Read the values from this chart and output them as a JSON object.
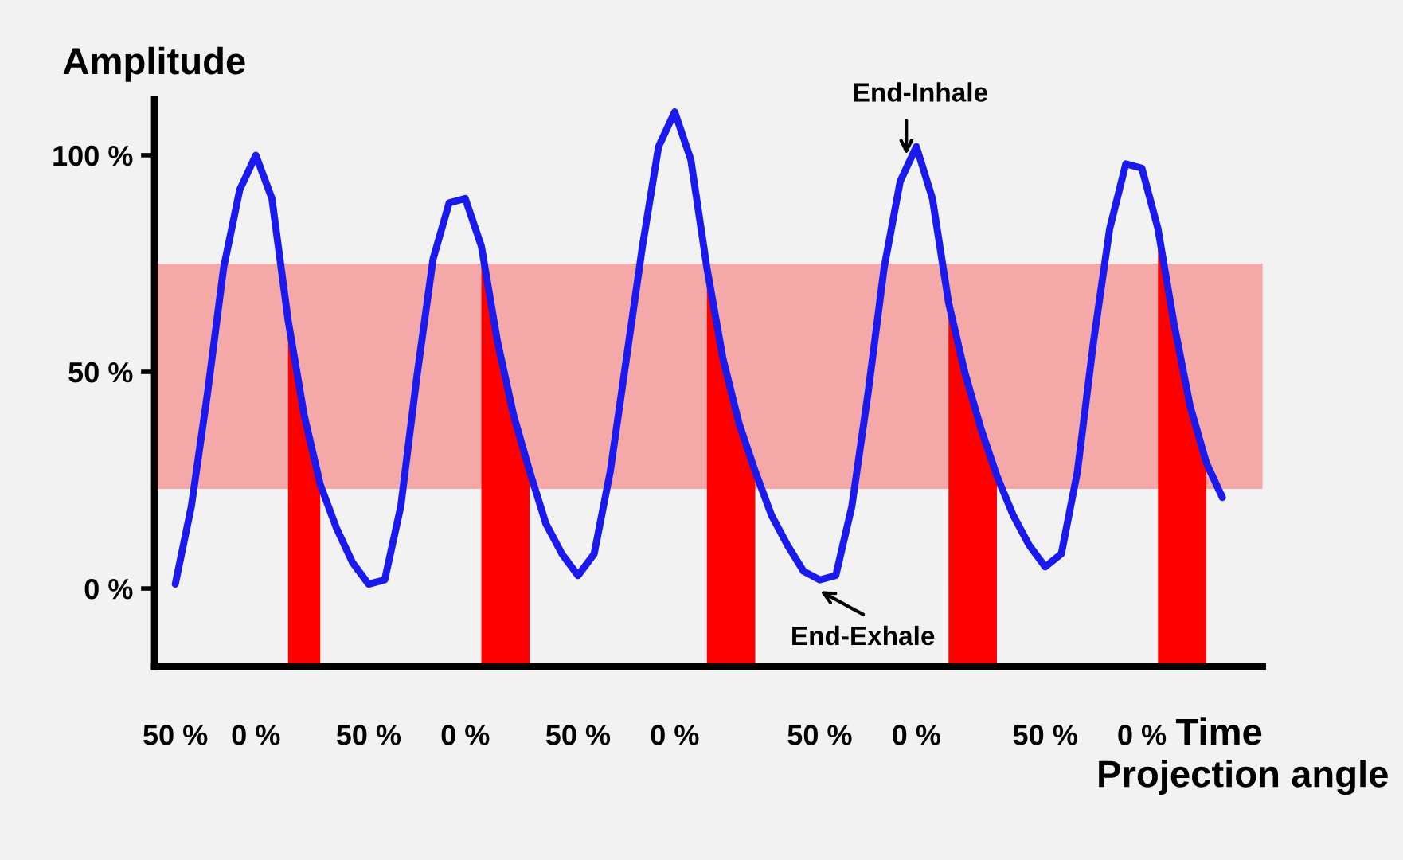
{
  "chart_data": {
    "type": "line",
    "xlabel": "Time",
    "ylabel": "Amplitude",
    "categories": [
      "50 %",
      null,
      null,
      null,
      null,
      "0 %",
      null,
      null,
      null,
      null,
      null,
      null,
      "50 %",
      null,
      null,
      null,
      null,
      null,
      "0 %",
      null,
      null,
      null,
      null,
      null,
      null,
      "50 %",
      null,
      null,
      null,
      null,
      null,
      "0 %",
      null,
      null,
      null,
      null,
      null,
      null,
      null,
      null,
      "50 %",
      null,
      null,
      null,
      null,
      null,
      "0 %",
      null,
      null,
      null,
      null,
      null,
      null,
      null,
      "50 %",
      null,
      null,
      null,
      null,
      null,
      "0 %",
      null,
      null,
      null,
      null,
      null
    ],
    "ylim": [
      -18,
      113
    ],
    "yticks": [
      {
        "value": 0,
        "label": "0 %"
      },
      {
        "value": 50,
        "label": "50 %"
      },
      {
        "value": 100,
        "label": "100 %"
      }
    ],
    "grid": false,
    "bands": [
      {
        "axis": "y",
        "from": 23,
        "to": 75,
        "color": "#f4a8a8"
      }
    ],
    "series": [
      {
        "type": "area",
        "color": "#ff0000",
        "values": [
          null,
          null,
          null,
          null,
          null,
          null,
          null,
          62,
          40,
          24,
          null,
          null,
          null,
          null,
          null,
          null,
          null,
          null,
          null,
          null,
          null,
          null,
          null,
          null,
          null,
          null,
          null,
          null,
          null,
          null,
          null,
          null,
          null,
          null,
          null,
          null,
          null,
          null,
          null,
          null,
          null,
          null,
          null,
          null,
          null,
          null,
          null,
          null,
          null,
          null,
          null,
          null,
          null,
          null,
          null,
          null,
          null,
          null,
          null,
          null,
          null,
          null,
          null,
          null,
          null,
          null
        ]
      },
      {
        "type": "area",
        "color": "#ff0000",
        "values": [
          null,
          null,
          null,
          null,
          null,
          null,
          null,
          null,
          null,
          null,
          null,
          null,
          null,
          null,
          null,
          null,
          null,
          null,
          null,
          79,
          57,
          40,
          27,
          null,
          null,
          null,
          null,
          null,
          null,
          null,
          null,
          null,
          null,
          null,
          null,
          null,
          null,
          null,
          null,
          null,
          null,
          null,
          null,
          null,
          null,
          null,
          null,
          null,
          null,
          null,
          null,
          null,
          null,
          null,
          null,
          null,
          null,
          null,
          null,
          null,
          null,
          null,
          null,
          null,
          null,
          null
        ]
      },
      {
        "type": "area",
        "color": "#ff0000",
        "values": [
          null,
          null,
          null,
          null,
          null,
          null,
          null,
          null,
          null,
          null,
          null,
          null,
          null,
          null,
          null,
          null,
          null,
          null,
          null,
          null,
          null,
          null,
          null,
          null,
          null,
          null,
          null,
          null,
          null,
          null,
          null,
          null,
          null,
          74,
          53,
          38,
          27,
          null,
          null,
          null,
          null,
          null,
          null,
          null,
          null,
          null,
          null,
          null,
          null,
          null,
          null,
          null,
          null,
          null,
          null,
          null,
          null,
          null,
          null,
          null,
          null,
          null,
          null,
          null,
          null,
          null
        ]
      },
      {
        "type": "area",
        "color": "#ff0000",
        "values": [
          null,
          null,
          null,
          null,
          null,
          null,
          null,
          null,
          null,
          null,
          null,
          null,
          null,
          null,
          null,
          null,
          null,
          null,
          null,
          null,
          null,
          null,
          null,
          null,
          null,
          null,
          null,
          null,
          null,
          null,
          null,
          null,
          null,
          null,
          null,
          null,
          null,
          null,
          null,
          null,
          null,
          null,
          null,
          null,
          null,
          null,
          null,
          null,
          66,
          50,
          37,
          26,
          null,
          null,
          null,
          null,
          null,
          null,
          null,
          null,
          null,
          null,
          null,
          null,
          null,
          null
        ]
      },
      {
        "type": "area",
        "color": "#ff0000",
        "values": [
          null,
          null,
          null,
          null,
          null,
          null,
          null,
          null,
          null,
          null,
          null,
          null,
          null,
          null,
          null,
          null,
          null,
          null,
          null,
          null,
          null,
          null,
          null,
          null,
          null,
          null,
          null,
          null,
          null,
          null,
          null,
          null,
          null,
          null,
          null,
          null,
          null,
          null,
          null,
          null,
          null,
          null,
          null,
          null,
          null,
          null,
          null,
          null,
          null,
          null,
          null,
          null,
          null,
          null,
          null,
          null,
          null,
          null,
          null,
          null,
          null,
          83,
          61,
          42,
          29,
          null
        ]
      },
      {
        "color": "#1a1aee",
        "values": [
          1,
          19,
          45,
          74,
          92,
          100,
          90,
          62,
          40,
          24,
          14,
          6,
          1,
          2,
          19,
          49,
          76,
          89,
          90,
          79,
          57,
          40,
          27,
          15,
          8,
          3,
          8,
          27,
          53,
          79,
          102,
          110,
          99,
          74,
          53,
          38,
          27,
          17,
          10,
          4,
          2,
          3,
          19,
          45,
          74,
          94,
          102,
          90,
          66,
          50,
          37,
          26,
          17,
          10,
          5,
          8,
          27,
          57,
          83,
          98,
          97,
          83,
          61,
          42,
          29,
          21
        ]
      }
    ],
    "annotations": [
      "End-Inhale",
      "End-Exhale",
      "Projection angle"
    ]
  }
}
